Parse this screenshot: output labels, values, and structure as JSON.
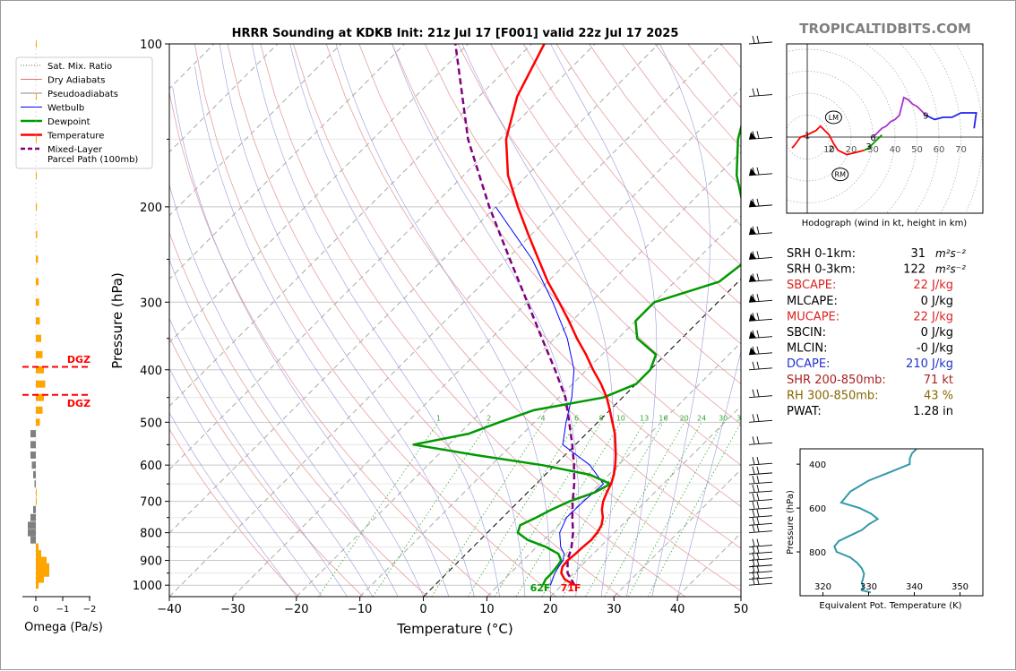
{
  "title": "HRRR Sounding at KDKB Init: 21z Jul 17 [F001] valid 22z Jul 17 2025",
  "watermark": "TROPICALTIDBITS.COM",
  "colors": {
    "temperature": "#ff0000",
    "dewpoint": "#009900",
    "wetbulb": "#0000ff",
    "parcel": "#800080",
    "dgz": "#ff0000",
    "omega_pos": "#ffa500",
    "omega_neg": "#808080",
    "theta_e": "#3399aa"
  },
  "skewt": {
    "ylabel": "Pressure (hPa)",
    "xlabel": "Temperature (°C)",
    "x_ticks": [
      "−40",
      "−30",
      "−20",
      "−10",
      "0",
      "10",
      "20",
      "30",
      "40",
      "50"
    ],
    "x_tick_values": [
      -40,
      -30,
      -20,
      -10,
      0,
      10,
      20,
      30,
      40,
      50
    ],
    "y_ticks": [
      "100",
      "200",
      "300",
      "400",
      "500",
      "600",
      "700",
      "800",
      "900",
      "1000"
    ],
    "y_tick_values": [
      100,
      200,
      300,
      400,
      500,
      600,
      700,
      800,
      900,
      1000
    ],
    "xlim": [
      -40,
      50
    ],
    "ylim": [
      1050,
      100
    ],
    "surface_temp_label": "71F",
    "surface_dew_label": "62F",
    "mixing_ratio_labels": [
      "1",
      "2",
      "4",
      "6",
      "8",
      "10",
      "13",
      "16",
      "20",
      "24",
      "30",
      "36"
    ],
    "legend": [
      {
        "label": "Sat. Mix. Ratio",
        "style": "dotted",
        "color": "#666666"
      },
      {
        "label": "Dry Adiabats",
        "style": "solid",
        "color": "#e07070"
      },
      {
        "label": "Pseudoadiabats",
        "style": "solid",
        "color": "#888888"
      },
      {
        "label": "Wetbulb",
        "style": "solid",
        "color": "#0000ff"
      },
      {
        "label": "Dewpoint",
        "style": "solid",
        "color": "#009900"
      },
      {
        "label": "Temperature",
        "style": "solid",
        "color": "#ff0000"
      },
      {
        "label": "Mixed-Layer\nParcel Path (100mb)",
        "style": "dashed",
        "color": "#800080"
      }
    ]
  },
  "omega": {
    "xlabel": "Omega (Pa/s)",
    "x_ticks": [
      "0",
      "−1",
      "−2"
    ],
    "dgz_label_top": "DGZ",
    "dgz_label_bottom": "DGZ"
  },
  "hodograph": {
    "caption": "Hodograph (wind in kt, height in km)",
    "ring_labels": [
      "10",
      "20",
      "30",
      "40",
      "50",
      "60",
      "70"
    ],
    "height_labels": [
      "1",
      "2",
      "3",
      "6",
      "9"
    ],
    "storm_labels": [
      "LM",
      "RM"
    ]
  },
  "indices": [
    {
      "label": "SRH 0-1km:",
      "value": "31",
      "unit": "m²s⁻²",
      "color": "#000000"
    },
    {
      "label": "SRH 0-3km:",
      "value": "122",
      "unit": "m²s⁻²",
      "color": "#000000"
    },
    {
      "label": "SBCAPE:",
      "value": "22 J/kg",
      "unit": "",
      "color": "#dd2222"
    },
    {
      "label": "MLCAPE:",
      "value": "0 J/kg",
      "unit": "",
      "color": "#000000"
    },
    {
      "label": "MUCAPE:",
      "value": "22 J/kg",
      "unit": "",
      "color": "#dd2222"
    },
    {
      "label": "SBCIN:",
      "value": "0 J/kg",
      "unit": "",
      "color": "#000000"
    },
    {
      "label": "MLCIN:",
      "value": "-0 J/kg",
      "unit": "",
      "color": "#000000"
    },
    {
      "label": "DCAPE:",
      "value": "210 J/kg",
      "unit": "",
      "color": "#2233cc"
    },
    {
      "label": "SHR 200-850mb:",
      "value": "71 kt",
      "unit": "",
      "color": "#aa2222"
    },
    {
      "label": "RH 300-850mb:",
      "value": "43 %",
      "unit": "",
      "color": "#886600"
    },
    {
      "label": "PWAT:",
      "value": "1.28 in",
      "unit": "",
      "color": "#000000"
    }
  ],
  "theta_e": {
    "xlabel": "Equivalent Pot. Temperature (K)",
    "ylabel": "Pressure (hPa)",
    "x_ticks": [
      "320",
      "330",
      "340",
      "350"
    ],
    "y_ticks": [
      "400",
      "600",
      "800"
    ]
  },
  "chart_data": [
    {
      "type": "line",
      "title": "HRRR Sounding at KDKB Init: 21z Jul 17 [F001] valid 22z Jul 17 2025",
      "xlabel": "Temperature (°C)",
      "ylabel": "Pressure (hPa)",
      "xlim": [
        -40,
        50
      ],
      "ylim": [
        1050,
        100
      ],
      "series": [
        {
          "name": "Temperature",
          "pressure": [
            1000,
            990,
            975,
            950,
            925,
            900,
            875,
            850,
            825,
            800,
            775,
            750,
            725,
            700,
            675,
            650,
            625,
            600,
            575,
            550,
            525,
            500,
            475,
            450,
            425,
            400,
            375,
            350,
            325,
            300,
            275,
            250,
            225,
            200,
            175,
            150,
            125,
            100
          ],
          "temp": [
            22,
            21,
            19.5,
            18,
            17.2,
            17,
            17.2,
            17.3,
            17.5,
            17.3,
            16.8,
            15.8,
            14.4,
            13.3,
            12.5,
            11.8,
            10.8,
            9.5,
            8,
            6.3,
            4.5,
            2.3,
            0,
            -2.5,
            -5.5,
            -9,
            -12.5,
            -16.5,
            -20.5,
            -25,
            -30,
            -35,
            -40.5,
            -46.5,
            -53,
            -59,
            -64,
            -68
          ]
        },
        {
          "name": "Dewpoint",
          "pressure": [
            1000,
            990,
            975,
            950,
            925,
            900,
            875,
            850,
            825,
            800,
            775,
            750,
            725,
            700,
            675,
            650,
            625,
            600,
            575,
            550,
            525,
            500,
            475,
            450,
            425,
            400,
            375,
            350,
            325,
            300,
            275,
            250,
            225,
            200,
            175,
            150,
            125,
            100
          ],
          "dewp": [
            17,
            16.8,
            16.5,
            16.5,
            16.3,
            16,
            14.5,
            11.5,
            7.5,
            4.8,
            4,
            5.3,
            6.5,
            8,
            10.5,
            11.7,
            7,
            -2,
            -14,
            -25.5,
            -18.5,
            -15.5,
            -12,
            -3,
            0,
            0,
            -1.5,
            -7,
            -10,
            -10,
            -3,
            -2,
            -6,
            -11,
            -17,
            -22.5,
            -27.5,
            -30
          ]
        },
        {
          "name": "Wetbulb",
          "pressure": [
            1000,
            975,
            950,
            925,
            900,
            875,
            850,
            800,
            750,
            700,
            650,
            600,
            550,
            500,
            450,
            400,
            350,
            300,
            250,
            200
          ],
          "wetbulb": [
            18.2,
            17.6,
            17,
            16.6,
            16.3,
            15.4,
            13.8,
            11.4,
            10.1,
            10.2,
            10.6,
            5.5,
            -2,
            -5,
            -8,
            -12,
            -18,
            -26,
            -36,
            -50
          ]
        },
        {
          "name": "Mixed-Layer Parcel Path (100mb)",
          "pressure": [
            1000,
            950,
            900,
            850,
            800,
            750,
            700,
            650,
            600,
            550,
            500,
            450,
            400,
            350,
            300,
            250,
            200,
            150,
            100
          ],
          "parcel": [
            22,
            19,
            17,
            15.5,
            13.5,
            11,
            8.5,
            6,
            3,
            -0.5,
            -4.5,
            -9,
            -15,
            -22,
            -30,
            -39.5,
            -51,
            -65,
            -82
          ]
        }
      ],
      "omega_pa_s": {
        "pressure": [
          1000,
          975,
          950,
          925,
          900,
          875,
          850,
          825,
          800,
          775,
          750,
          725,
          700,
          675,
          650,
          625,
          600,
          575,
          550,
          525,
          500,
          475,
          450,
          425,
          400,
          375,
          350,
          325,
          300,
          275,
          250,
          225,
          200,
          175,
          150,
          125,
          100
        ],
        "values": [
          0.1,
          0.3,
          0.5,
          0.5,
          0.4,
          0.2,
          0.1,
          -0.2,
          -0.3,
          -0.3,
          -0.2,
          -0.1,
          0,
          0,
          -0.05,
          -0.1,
          -0.15,
          -0.2,
          -0.2,
          -0.2,
          0.15,
          0.25,
          0.3,
          0.35,
          0.3,
          0.25,
          0.2,
          0.15,
          0.12,
          0.1,
          0.08,
          0.05,
          0.04,
          0.02,
          0.02,
          0.01,
          0.01
        ]
      },
      "dgz_pressure": [
        395,
        445
      ]
    },
    {
      "type": "line",
      "xlabel": "Equivalent Pot. Temperature (K)",
      "ylabel": "Pressure (hPa)",
      "xlim": [
        315,
        355
      ],
      "ylim": [
        1000,
        300
      ],
      "series": [
        {
          "name": "Equivalent Pot. Temperature",
          "pressure": [
            985,
            975,
            960,
            940,
            920,
            900,
            875,
            850,
            825,
            800,
            775,
            750,
            725,
            700,
            675,
            650,
            625,
            600,
            575,
            550,
            525,
            500,
            475,
            450,
            425,
            400,
            375,
            350,
            330
          ],
          "theta_e": [
            330.5,
            328.5,
            328.8,
            328.5,
            328.8,
            329,
            328.5,
            327.5,
            326,
            323,
            322.5,
            323.5,
            326,
            328.5,
            330,
            332,
            330.5,
            328,
            324,
            325,
            326,
            328,
            330,
            333,
            336,
            339,
            339,
            339.5,
            340.5
          ]
        }
      ]
    }
  ],
  "hodograph_data": {
    "ring_step_kt": 10,
    "segments": [
      {
        "color": "#ff0000",
        "points": [
          [
            -7,
            -5
          ],
          [
            -6,
            -4
          ],
          [
            -3,
            0
          ],
          [
            0,
            1
          ],
          [
            2,
            2
          ],
          [
            4,
            3
          ],
          [
            6,
            5
          ],
          [
            8,
            3
          ],
          [
            10,
            1
          ],
          [
            12,
            -3
          ],
          [
            14,
            -6
          ],
          [
            18,
            -8
          ],
          [
            22,
            -7
          ],
          [
            26,
            -6
          ]
        ]
      },
      {
        "color": "#009900",
        "points": [
          [
            26,
            -6
          ],
          [
            28,
            -5
          ],
          [
            30,
            -3
          ],
          [
            32,
            -1
          ],
          [
            34,
            1
          ]
        ]
      },
      {
        "color": "#aa33cc",
        "points": [
          [
            30,
            0
          ],
          [
            32,
            2
          ],
          [
            34,
            4
          ],
          [
            36,
            5
          ],
          [
            38,
            7
          ],
          [
            40,
            8
          ],
          [
            42,
            10
          ],
          [
            43,
            14
          ],
          [
            44,
            18
          ],
          [
            46,
            17
          ],
          [
            48,
            15
          ],
          [
            50,
            14
          ],
          [
            52,
            12
          ],
          [
            54,
            10
          ]
        ]
      },
      {
        "color": "#2222ee",
        "points": [
          [
            54,
            10
          ],
          [
            58,
            8
          ],
          [
            62,
            9
          ],
          [
            66,
            9
          ],
          [
            70,
            11
          ],
          [
            74,
            11
          ],
          [
            77,
            11
          ],
          [
            76,
            4
          ]
        ]
      }
    ],
    "height_marks": [
      {
        "label": "1",
        "u": 0,
        "v": 1
      },
      {
        "label": "2",
        "u": 11,
        "v": -5
      },
      {
        "label": "3",
        "u": 28,
        "v": -4
      },
      {
        "label": "6",
        "u": 30,
        "v": 0
      },
      {
        "label": "9",
        "u": 54,
        "v": 10
      }
    ],
    "storm_motion": [
      {
        "label": "LM",
        "u": 12,
        "v": 9
      },
      {
        "label": "RM",
        "u": 15,
        "v": -17
      }
    ]
  }
}
